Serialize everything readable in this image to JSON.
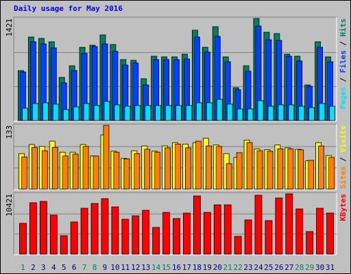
{
  "chart_data": [
    {
      "type": "bar",
      "title": "Daily usage for May 2016",
      "ylim": [
        0,
        1421
      ],
      "yticks": [
        1421
      ],
      "legend": "right",
      "legend_separator": " / ",
      "series": [
        {
          "name": "Hits",
          "color": "#00805c",
          "values": [
            696,
            1163,
            1144,
            1097,
            601,
            763,
            1020,
            1049,
            1192,
            1059,
            849,
            839,
            582,
            896,
            887,
            887,
            925,
            1259,
            1020,
            1307,
            887,
            458,
            763,
            1421,
            1230,
            1211,
            925,
            896,
            496,
            1097,
            887
          ]
        },
        {
          "name": "Files",
          "color": "#0040ff",
          "values": [
            677,
            1097,
            1068,
            1011,
            525,
            696,
            935,
            1030,
            1068,
            963,
            773,
            801,
            496,
            849,
            849,
            849,
            858,
            1163,
            954,
            1173,
            820,
            429,
            687,
            1316,
            1125,
            1116,
            896,
            830,
            477,
            1020,
            820
          ]
        },
        {
          "name": "Pages",
          "color": "#00e0ff",
          "values": [
            172,
            238,
            248,
            229,
            153,
            191,
            238,
            210,
            267,
            219,
            200,
            210,
            210,
            210,
            210,
            210,
            210,
            248,
            248,
            296,
            229,
            162,
            162,
            277,
            200,
            219,
            219,
            200,
            181,
            238,
            200
          ]
        }
      ]
    },
    {
      "type": "bar",
      "ylim": [
        0,
        133
      ],
      "yticks": [
        133
      ],
      "legend": "right",
      "legend_separator": " / ",
      "series": [
        {
          "name": "Visits",
          "color": "#ffff00",
          "values": [
            74,
            93,
            89,
            100,
            77,
            77,
            93,
            69,
            113,
            79,
            64,
            80,
            90,
            79,
            90,
            97,
            94,
            97,
            106,
            92,
            74,
            66,
            102,
            84,
            82,
            92,
            86,
            83,
            59,
            97,
            70
          ]
        },
        {
          "name": "Sites",
          "color": "#ff8000",
          "values": [
            67,
            87,
            80,
            87,
            69,
            73,
            89,
            69,
            133,
            77,
            63,
            74,
            83,
            77,
            86,
            94,
            86,
            100,
            90,
            89,
            53,
            76,
            97,
            80,
            79,
            84,
            84,
            82,
            60,
            90,
            66
          ]
        }
      ]
    },
    {
      "type": "bar",
      "ylim": [
        0,
        10421
      ],
      "yticks": [
        10421
      ],
      "legend": "right",
      "categories": [
        "1",
        "2",
        "3",
        "4",
        "5",
        "6",
        "7",
        "8",
        "9",
        "10",
        "11",
        "12",
        "13",
        "14",
        "15",
        "16",
        "17",
        "18",
        "19",
        "20",
        "21",
        "22",
        "23",
        "24",
        "25",
        "26",
        "27",
        "28",
        "29",
        "30",
        "31"
      ],
      "category_colors": [
        "#00805c",
        "#000080",
        "#000080",
        "#000080",
        "#000080",
        "#000080",
        "#00805c",
        "#00805c",
        "#000080",
        "#000080",
        "#000080",
        "#000080",
        "#000080",
        "#00805c",
        "#00805c",
        "#000080",
        "#000080",
        "#000080",
        "#000080",
        "#000080",
        "#00805c",
        "#00805c",
        "#000080",
        "#000080",
        "#000080",
        "#000080",
        "#000080",
        "#00805c",
        "#00805c",
        "#000080",
        "#000080"
      ],
      "series": [
        {
          "name": "KBytes",
          "color": "#ff0000",
          "values": [
            5328,
            8880,
            9117,
            6749,
            3197,
            5565,
            7933,
            8762,
            9590,
            8170,
            6038,
            6630,
            7578,
            4618,
            7222,
            6157,
            7104,
            10064,
            7222,
            8525,
            8525,
            3078,
            5920,
            10183,
            5802,
            9709,
            10421,
            7814,
            3907,
            7933,
            7104
          ]
        }
      ]
    }
  ]
}
